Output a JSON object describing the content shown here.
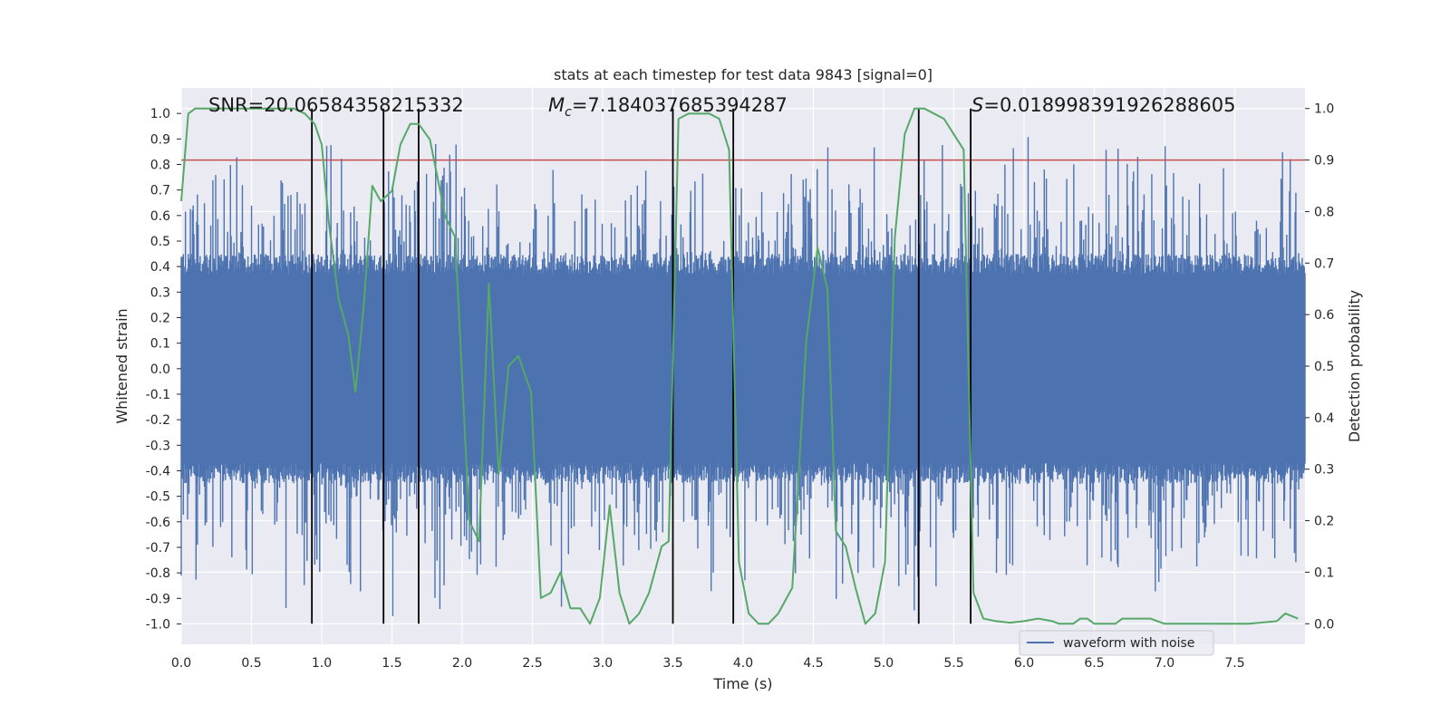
{
  "chart_data": {
    "type": "line",
    "title": "stats at each timestep for test data 9843 [signal=0]",
    "xlabel": "Time (s)",
    "ylabel_left": "Whitened strain",
    "ylabel_right": "Detection probability",
    "xlim": [
      0.0,
      8.0
    ],
    "ylim_left": [
      -1.08,
      1.1
    ],
    "ylim_right": [
      -0.04,
      1.04
    ],
    "x_ticks": [
      "0.0",
      "0.5",
      "1.0",
      "1.5",
      "2.0",
      "2.5",
      "3.0",
      "3.5",
      "4.0",
      "4.5",
      "5.0",
      "5.5",
      "6.0",
      "6.5",
      "7.0",
      "7.5"
    ],
    "x_tick_values": [
      0.0,
      0.5,
      1.0,
      1.5,
      2.0,
      2.5,
      3.0,
      3.5,
      4.0,
      4.5,
      5.0,
      5.5,
      6.0,
      6.5,
      7.0,
      7.5
    ],
    "y_ticks_left": [
      "1.0",
      "0.9",
      "0.8",
      "0.7",
      "0.6",
      "0.5",
      "0.4",
      "0.3",
      "0.2",
      "0.1",
      "0.0",
      "-0.1",
      "-0.2",
      "-0.3",
      "-0.4",
      "-0.5",
      "-0.6",
      "-0.7",
      "-0.8",
      "-0.9",
      "-1.0"
    ],
    "y_tick_values_left": [
      1.0,
      0.9,
      0.8,
      0.7,
      0.6,
      0.5,
      0.4,
      0.3,
      0.2,
      0.1,
      0.0,
      -0.1,
      -0.2,
      -0.3,
      -0.4,
      -0.5,
      -0.6,
      -0.7,
      -0.8,
      -0.9,
      -1.0
    ],
    "y_ticks_right": [
      "1.0",
      "0.9",
      "0.8",
      "0.7",
      "0.6",
      "0.5",
      "0.4",
      "0.3",
      "0.2",
      "0.1",
      "0.0"
    ],
    "y_tick_values_right": [
      1.0,
      0.9,
      0.8,
      0.7,
      0.6,
      0.5,
      0.4,
      0.3,
      0.2,
      0.1,
      0.0
    ],
    "annotations": {
      "snr": "SNR=20.06584358215332",
      "mc_symbol": "M",
      "mc_sub": "c",
      "mc_value": "=7.184037685394287",
      "s_symbol": "S",
      "s_value": "=0.018998391926288605"
    },
    "legend": {
      "label": "waveform with noise",
      "position": "lower-right"
    },
    "threshold": {
      "value": 0.9,
      "axis": "right",
      "color": "#c44e52"
    },
    "vertical_lines": [
      0.93,
      1.44,
      1.69,
      3.5,
      3.93,
      5.25,
      5.62
    ],
    "waveform": {
      "name": "waveform with noise",
      "color": "#4c72b0",
      "t_start": 0.0,
      "t_end": 8.0,
      "samples": 1600,
      "core_amplitude": 0.45,
      "peak_max": 1.0,
      "peak_min": -0.97
    },
    "probability": {
      "name": "detection probability",
      "color": "#55a868",
      "x": [
        0.0,
        0.05,
        0.1,
        0.2,
        0.3,
        0.4,
        0.5,
        0.6,
        0.7,
        0.8,
        0.88,
        0.95,
        1.0,
        1.05,
        1.12,
        1.19,
        1.24,
        1.3,
        1.36,
        1.42,
        1.5,
        1.56,
        1.63,
        1.69,
        1.77,
        1.88,
        1.95,
        2.05,
        2.12,
        2.19,
        2.26,
        2.33,
        2.4,
        2.49,
        2.56,
        2.63,
        2.7,
        2.77,
        2.84,
        2.91,
        2.98,
        3.05,
        3.12,
        3.19,
        3.26,
        3.33,
        3.42,
        3.47,
        3.54,
        3.61,
        3.68,
        3.76,
        3.83,
        3.9,
        3.97,
        4.04,
        4.11,
        4.18,
        4.25,
        4.35,
        4.45,
        4.53,
        4.6,
        4.66,
        4.73,
        4.8,
        4.87,
        4.94,
        5.01,
        5.08,
        5.15,
        5.22,
        5.29,
        5.36,
        5.43,
        5.5,
        5.57,
        5.64,
        5.71,
        5.8,
        5.9,
        6.0,
        6.1,
        6.2,
        6.25,
        6.3,
        6.35,
        6.4,
        6.45,
        6.5,
        6.55,
        6.6,
        6.65,
        6.7,
        6.8,
        6.9,
        7.0,
        7.2,
        7.4,
        7.6,
        7.8,
        7.86,
        7.95
      ],
      "y": [
        0.82,
        0.99,
        1.0,
        1.0,
        1.0,
        1.0,
        1.0,
        1.0,
        1.0,
        1.0,
        0.99,
        0.97,
        0.93,
        0.78,
        0.63,
        0.56,
        0.45,
        0.62,
        0.85,
        0.82,
        0.84,
        0.93,
        0.97,
        0.97,
        0.94,
        0.79,
        0.75,
        0.2,
        0.16,
        0.66,
        0.29,
        0.5,
        0.52,
        0.45,
        0.05,
        0.06,
        0.1,
        0.03,
        0.03,
        0.0,
        0.05,
        0.23,
        0.06,
        0.0,
        0.02,
        0.06,
        0.15,
        0.16,
        0.98,
        0.99,
        0.99,
        0.99,
        0.98,
        0.92,
        0.12,
        0.02,
        0.0,
        0.0,
        0.02,
        0.07,
        0.55,
        0.73,
        0.65,
        0.18,
        0.15,
        0.07,
        0.0,
        0.02,
        0.12,
        0.75,
        0.95,
        1.0,
        1.0,
        0.99,
        0.98,
        0.95,
        0.92,
        0.06,
        0.01,
        0.005,
        0.002,
        0.005,
        0.01,
        0.005,
        0.0,
        0.0,
        0.0,
        0.01,
        0.01,
        0.0,
        0.0,
        0.0,
        0.0,
        0.01,
        0.01,
        0.01,
        0.0,
        0.0,
        0.0,
        0.0,
        0.005,
        0.02,
        0.01
      ]
    }
  }
}
